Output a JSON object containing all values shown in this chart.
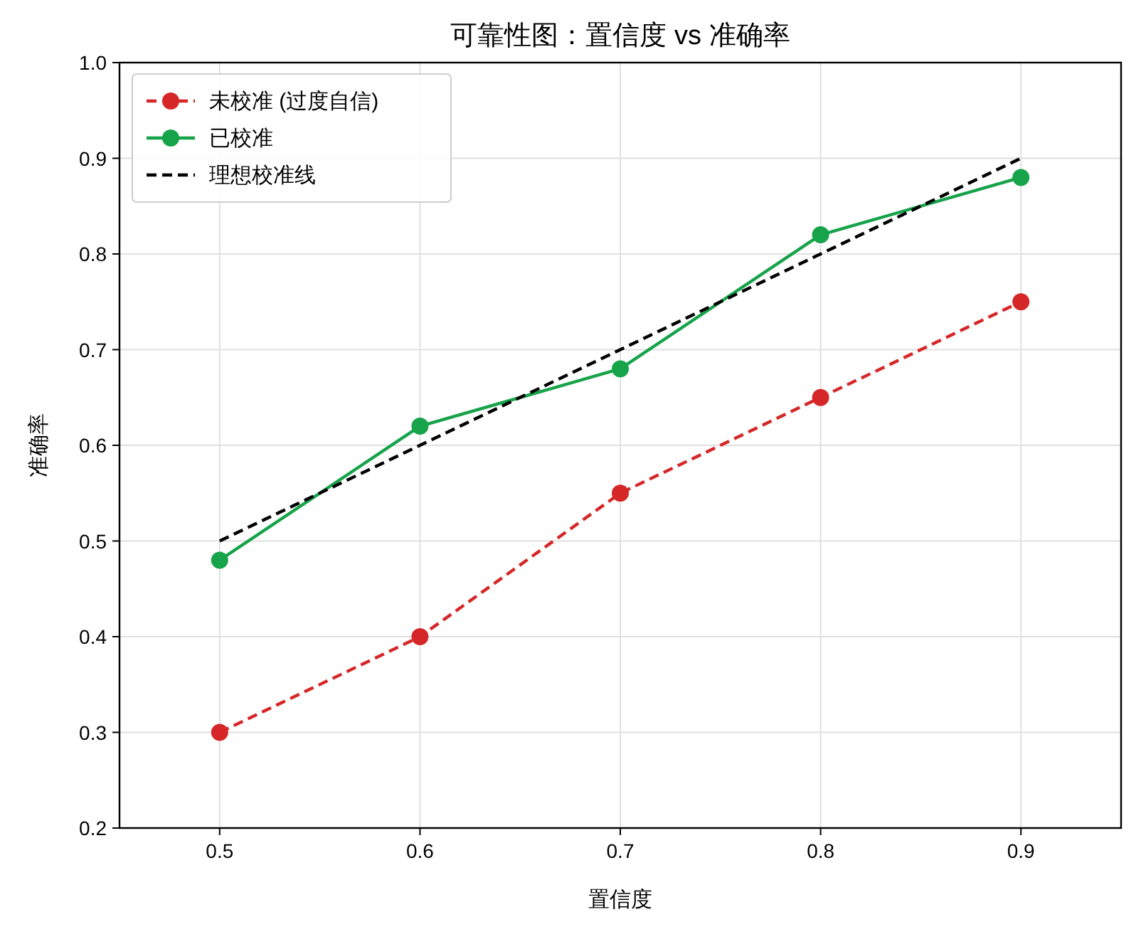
{
  "chart_data": {
    "type": "line",
    "title": "可靠性图：置信度 vs 准确率",
    "xlabel": "置信度",
    "ylabel": "准确率",
    "x": [
      0.5,
      0.6,
      0.7,
      0.8,
      0.9
    ],
    "xlim": [
      0.45,
      0.95
    ],
    "xticks": [
      0.5,
      0.6,
      0.7,
      0.8,
      0.9
    ],
    "ylim": [
      0.2,
      1.0
    ],
    "yticks": [
      {
        "value": 0.2,
        "label": "0.2"
      },
      0.3,
      0.4,
      0.5,
      0.6,
      0.7,
      0.8,
      0.9,
      {
        "value": 1.0,
        "label": "1.0"
      }
    ],
    "grid": true,
    "legend": "top left",
    "series": [
      {
        "name": "未校准 (过度自信)",
        "color": "#d62728",
        "values": [
          0.3,
          0.4,
          0.55,
          0.65,
          0.75
        ],
        "marker": "circle",
        "line_style": "dashed"
      },
      {
        "name": "已校准",
        "color": "#16a34a",
        "values": [
          0.48,
          0.62,
          0.68,
          0.82,
          0.88
        ],
        "marker": "circle",
        "line_style": "solid"
      },
      {
        "name": "理想校准线",
        "color": "#000000",
        "x": [
          0.5,
          0.9
        ],
        "values": [
          0.5,
          0.9
        ],
        "marker": "none",
        "line_style": "dashed"
      }
    ]
  }
}
